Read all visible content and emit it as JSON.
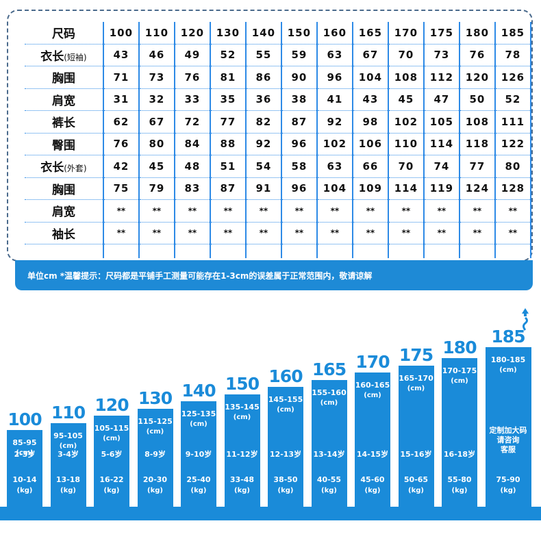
{
  "size_table": {
    "header_label": "尺码",
    "sizes": [
      "100",
      "110",
      "120",
      "130",
      "140",
      "150",
      "160",
      "165",
      "170",
      "175",
      "180",
      "185"
    ],
    "rows": [
      {
        "label": "衣长",
        "sub": "(短袖)",
        "values": [
          "43",
          "46",
          "49",
          "52",
          "55",
          "59",
          "63",
          "67",
          "70",
          "73",
          "76",
          "78"
        ]
      },
      {
        "label": "胸围",
        "sub": "",
        "values": [
          "71",
          "73",
          "76",
          "81",
          "86",
          "90",
          "96",
          "104",
          "108",
          "112",
          "120",
          "126"
        ]
      },
      {
        "label": "肩宽",
        "sub": "",
        "values": [
          "31",
          "32",
          "33",
          "35",
          "36",
          "38",
          "41",
          "43",
          "45",
          "47",
          "50",
          "52"
        ]
      },
      {
        "label": "裤长",
        "sub": "",
        "values": [
          "62",
          "67",
          "72",
          "77",
          "82",
          "87",
          "92",
          "98",
          "102",
          "105",
          "108",
          "111"
        ]
      },
      {
        "label": "臀围",
        "sub": "",
        "values": [
          "76",
          "80",
          "84",
          "88",
          "92",
          "96",
          "102",
          "106",
          "110",
          "114",
          "118",
          "122"
        ]
      },
      {
        "label": "衣长",
        "sub": "(外套)",
        "values": [
          "42",
          "45",
          "48",
          "51",
          "54",
          "58",
          "63",
          "66",
          "70",
          "74",
          "77",
          "80"
        ]
      },
      {
        "label": "胸围",
        "sub": "",
        "values": [
          "75",
          "79",
          "83",
          "87",
          "91",
          "96",
          "104",
          "109",
          "114",
          "119",
          "124",
          "128"
        ]
      },
      {
        "label": "肩宽",
        "sub": "",
        "values": [
          "**",
          "**",
          "**",
          "**",
          "**",
          "**",
          "**",
          "**",
          "**",
          "**",
          "**",
          "**"
        ]
      },
      {
        "label": "袖长",
        "sub": "",
        "values": [
          "**",
          "**",
          "**",
          "**",
          "**",
          "**",
          "**",
          "**",
          "**",
          "**",
          "**",
          "**"
        ]
      }
    ]
  },
  "banner": {
    "text": "单位cm *温馨提示：尺码都是平铺手工测量可能存在1-3cm的误差属于正常范围内，敬请谅解"
  },
  "bars": [
    {
      "size": "100",
      "height_range": "85-95",
      "unit": "(cm)",
      "age": "2-3岁",
      "weight": "10-14",
      "weight_unit": "(kg)"
    },
    {
      "size": "110",
      "height_range": "95-105",
      "unit": "(cm)",
      "age": "3-4岁",
      "weight": "13-18",
      "weight_unit": "(kg)"
    },
    {
      "size": "120",
      "height_range": "105-115",
      "unit": "(cm)",
      "age": "5-6岁",
      "weight": "16-22",
      "weight_unit": "(kg)"
    },
    {
      "size": "130",
      "height_range": "115-125",
      "unit": "(cm)",
      "age": "8-9岁",
      "weight": "20-30",
      "weight_unit": "(kg)"
    },
    {
      "size": "140",
      "height_range": "125-135",
      "unit": "(cm)",
      "age": "9-10岁",
      "weight": "25-40",
      "weight_unit": "(kg)"
    },
    {
      "size": "150",
      "height_range": "135-145",
      "unit": "(cm)",
      "age": "11-12岁",
      "weight": "33-48",
      "weight_unit": "(kg)"
    },
    {
      "size": "160",
      "height_range": "145-155",
      "unit": "(cm)",
      "age": "12-13岁",
      "weight": "38-50",
      "weight_unit": "(kg)"
    },
    {
      "size": "165",
      "height_range": "155-160",
      "unit": "(cm)",
      "age": "13-14岁",
      "weight": "40-55",
      "weight_unit": "(kg)"
    },
    {
      "size": "170",
      "height_range": "160-165",
      "unit": "(cm)",
      "age": "14-15岁",
      "weight": "45-60",
      "weight_unit": "(kg)"
    },
    {
      "size": "175",
      "height_range": "165-170",
      "unit": "(cm)",
      "age": "15-16岁",
      "weight": "50-65",
      "weight_unit": "(kg)"
    },
    {
      "size": "180",
      "height_range": "170-175",
      "unit": "(cm)",
      "age": "16-18岁",
      "weight": "55-80",
      "weight_unit": "(kg)"
    },
    {
      "size": "185",
      "height_range": "180-185",
      "unit": "(cm)",
      "age": "",
      "custom_note": [
        "定制加大码",
        "请咨询",
        "客服"
      ],
      "weight": "75-90",
      "weight_unit": "(kg)"
    }
  ],
  "colors": {
    "accent": "#1a8bd9",
    "grid": "#2d8ae6"
  }
}
